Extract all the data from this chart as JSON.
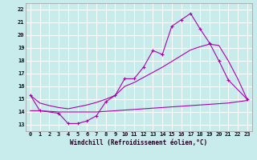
{
  "xlabel": "Windchill (Refroidissement éolien,°C)",
  "bg_color": "#c8ecec",
  "grid_color": "#aadddd",
  "line_color": "#aa00aa",
  "xlim": [
    -0.5,
    23.5
  ],
  "ylim": [
    12.5,
    22.5
  ],
  "xticks": [
    0,
    1,
    2,
    3,
    4,
    5,
    6,
    7,
    8,
    9,
    10,
    11,
    12,
    13,
    14,
    15,
    16,
    17,
    18,
    19,
    20,
    21,
    22,
    23
  ],
  "yticks": [
    13,
    14,
    15,
    16,
    17,
    18,
    19,
    20,
    21,
    22
  ],
  "line1_x": [
    0,
    1,
    3,
    4,
    5,
    6,
    7,
    8,
    9,
    10,
    11,
    12,
    13,
    14,
    15,
    16,
    17,
    18,
    19,
    20,
    21,
    23
  ],
  "line1_y": [
    15.3,
    14.1,
    13.9,
    13.1,
    13.1,
    13.3,
    13.7,
    14.8,
    15.3,
    16.6,
    16.6,
    17.5,
    18.8,
    18.5,
    20.7,
    21.2,
    21.7,
    20.5,
    19.4,
    18.0,
    16.5,
    15.0
  ],
  "line2_x": [
    0,
    1,
    2,
    3,
    4,
    5,
    6,
    7,
    8,
    9,
    10,
    11,
    12,
    13,
    14,
    15,
    16,
    17,
    18,
    19,
    20,
    21,
    22,
    23
  ],
  "line2_y": [
    15.3,
    14.7,
    14.5,
    14.35,
    14.25,
    14.4,
    14.55,
    14.75,
    15.0,
    15.3,
    16.0,
    16.3,
    16.7,
    17.1,
    17.5,
    17.95,
    18.4,
    18.85,
    19.1,
    19.3,
    19.2,
    18.0,
    16.6,
    15.0
  ],
  "line3_x": [
    0,
    1,
    2,
    3,
    4,
    5,
    6,
    7,
    8,
    9,
    10,
    11,
    12,
    13,
    14,
    15,
    16,
    17,
    18,
    19,
    20,
    21,
    22,
    23
  ],
  "line3_y": [
    14.1,
    14.1,
    14.05,
    14.0,
    14.0,
    14.0,
    14.0,
    14.0,
    14.05,
    14.1,
    14.15,
    14.2,
    14.25,
    14.3,
    14.35,
    14.4,
    14.45,
    14.5,
    14.55,
    14.6,
    14.65,
    14.7,
    14.8,
    14.9
  ]
}
